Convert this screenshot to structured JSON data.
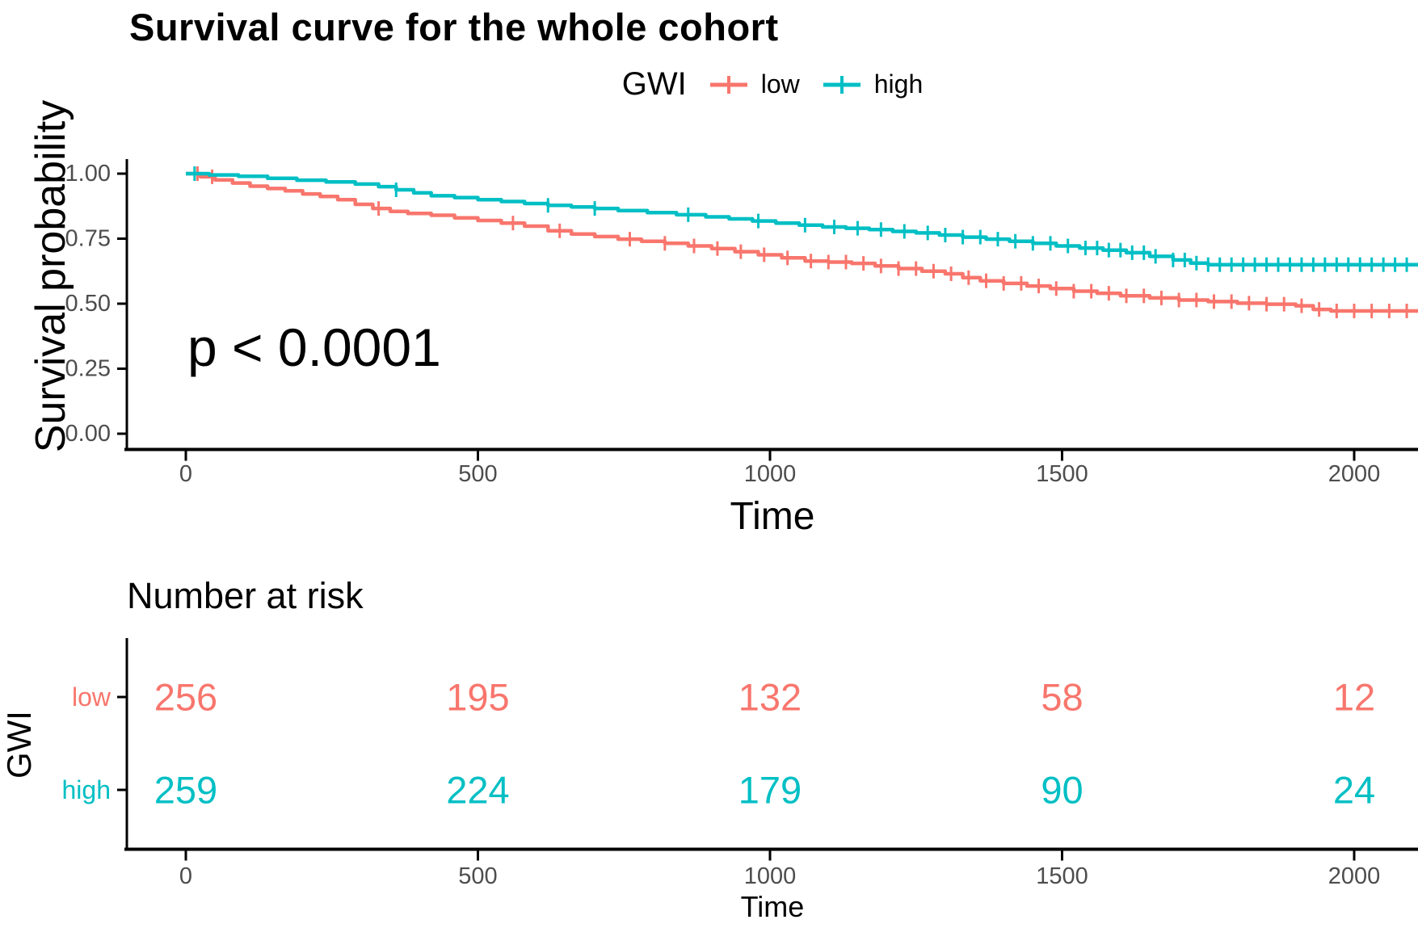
{
  "title": "Survival curve for the whole cohort",
  "legend": {
    "title": "GWI",
    "items": [
      {
        "label": "low",
        "color": "#F8766D"
      },
      {
        "label": "high",
        "color": "#00BFC4"
      }
    ]
  },
  "main_plot": {
    "ylabel": "Survival probability",
    "xlabel": "Time",
    "x_ticks": [
      "0",
      "500",
      "1000",
      "1500",
      "2000"
    ],
    "y_ticks": [
      "1.00",
      "0.75",
      "0.50",
      "0.25",
      "0.00"
    ]
  },
  "risk_table": {
    "title": "Number at risk",
    "ylabel": "GWI",
    "xlabel": "Time",
    "x_ticks": [
      "0",
      "500",
      "1000",
      "1500",
      "2000"
    ],
    "rows": [
      {
        "label": "low",
        "color": "#F8766D",
        "counts": [
          "256",
          "195",
          "132",
          "58",
          "12"
        ]
      },
      {
        "label": "high",
        "color": "#00BFC4",
        "counts": [
          "259",
          "224",
          "179",
          "90",
          "24"
        ]
      }
    ]
  },
  "colors": {
    "low": "#F8766D",
    "high": "#00BFC4",
    "axis_line": "#000000",
    "tick_text": "#4D4D4D"
  },
  "chart_data": {
    "type": "line",
    "subtype": "kaplan-meier-step",
    "title": "Survival curve for the whole cohort",
    "xlabel": "Time",
    "ylabel": "Survival probability",
    "xlim": [
      0,
      2110
    ],
    "ylim": [
      0,
      1
    ],
    "x_ticks": [
      0,
      500,
      1000,
      1500,
      2000
    ],
    "y_ticks": [
      1.0,
      0.75,
      0.5,
      0.25,
      0.0
    ],
    "legend_position": "top",
    "grid": false,
    "annotations": [
      {
        "text": "p < 0.0001"
      }
    ],
    "series": [
      {
        "name": "low",
        "color": "#F8766D",
        "points": [
          [
            0,
            1.0
          ],
          [
            25,
            0.988
          ],
          [
            50,
            0.976
          ],
          [
            80,
            0.964
          ],
          [
            110,
            0.952
          ],
          [
            140,
            0.943
          ],
          [
            170,
            0.934
          ],
          [
            200,
            0.922
          ],
          [
            230,
            0.912
          ],
          [
            260,
            0.9
          ],
          [
            290,
            0.882
          ],
          [
            320,
            0.866
          ],
          [
            350,
            0.855
          ],
          [
            380,
            0.847
          ],
          [
            420,
            0.84
          ],
          [
            460,
            0.83
          ],
          [
            500,
            0.82
          ],
          [
            540,
            0.81
          ],
          [
            580,
            0.798
          ],
          [
            620,
            0.78
          ],
          [
            660,
            0.768
          ],
          [
            700,
            0.758
          ],
          [
            740,
            0.748
          ],
          [
            780,
            0.74
          ],
          [
            820,
            0.732
          ],
          [
            860,
            0.722
          ],
          [
            900,
            0.712
          ],
          [
            940,
            0.7
          ],
          [
            980,
            0.688
          ],
          [
            1020,
            0.676
          ],
          [
            1060,
            0.664
          ],
          [
            1100,
            0.66
          ],
          [
            1140,
            0.655
          ],
          [
            1180,
            0.645
          ],
          [
            1220,
            0.635
          ],
          [
            1260,
            0.625
          ],
          [
            1300,
            0.615
          ],
          [
            1330,
            0.6
          ],
          [
            1360,
            0.588
          ],
          [
            1400,
            0.578
          ],
          [
            1440,
            0.568
          ],
          [
            1480,
            0.558
          ],
          [
            1520,
            0.548
          ],
          [
            1560,
            0.54
          ],
          [
            1600,
            0.53
          ],
          [
            1650,
            0.522
          ],
          [
            1700,
            0.514
          ],
          [
            1750,
            0.508
          ],
          [
            1800,
            0.502
          ],
          [
            1850,
            0.498
          ],
          [
            1900,
            0.492
          ],
          [
            1930,
            0.478
          ],
          [
            1960,
            0.472
          ],
          [
            2110,
            0.47
          ]
        ],
        "censor_times": [
          20,
          45,
          330,
          560,
          640,
          760,
          820,
          870,
          910,
          950,
          990,
          1030,
          1070,
          1100,
          1130,
          1160,
          1190,
          1220,
          1250,
          1280,
          1310,
          1340,
          1370,
          1400,
          1430,
          1460,
          1490,
          1520,
          1550,
          1580,
          1610,
          1640,
          1670,
          1700,
          1730,
          1760,
          1790,
          1820,
          1850,
          1880,
          1910,
          1940,
          1970,
          2000,
          2030,
          2060,
          2090
        ]
      },
      {
        "name": "high",
        "color": "#00BFC4",
        "points": [
          [
            0,
            1.0
          ],
          [
            40,
            0.995
          ],
          [
            90,
            0.99
          ],
          [
            140,
            0.982
          ],
          [
            190,
            0.975
          ],
          [
            240,
            0.968
          ],
          [
            290,
            0.96
          ],
          [
            330,
            0.95
          ],
          [
            360,
            0.938
          ],
          [
            390,
            0.926
          ],
          [
            420,
            0.915
          ],
          [
            460,
            0.908
          ],
          [
            500,
            0.9
          ],
          [
            540,
            0.893
          ],
          [
            580,
            0.885
          ],
          [
            620,
            0.878
          ],
          [
            660,
            0.872
          ],
          [
            700,
            0.866
          ],
          [
            740,
            0.858
          ],
          [
            790,
            0.85
          ],
          [
            840,
            0.842
          ],
          [
            890,
            0.834
          ],
          [
            930,
            0.826
          ],
          [
            970,
            0.818
          ],
          [
            1010,
            0.81
          ],
          [
            1050,
            0.802
          ],
          [
            1090,
            0.795
          ],
          [
            1130,
            0.79
          ],
          [
            1170,
            0.785
          ],
          [
            1210,
            0.778
          ],
          [
            1250,
            0.772
          ],
          [
            1290,
            0.764
          ],
          [
            1330,
            0.756
          ],
          [
            1370,
            0.748
          ],
          [
            1410,
            0.74
          ],
          [
            1450,
            0.732
          ],
          [
            1490,
            0.722
          ],
          [
            1530,
            0.714
          ],
          [
            1570,
            0.706
          ],
          [
            1610,
            0.696
          ],
          [
            1650,
            0.682
          ],
          [
            1690,
            0.668
          ],
          [
            1720,
            0.656
          ],
          [
            1750,
            0.65
          ],
          [
            2110,
            0.65
          ]
        ],
        "censor_times": [
          15,
          360,
          620,
          700,
          860,
          980,
          1060,
          1110,
          1150,
          1190,
          1230,
          1270,
          1300,
          1330,
          1360,
          1390,
          1420,
          1450,
          1480,
          1510,
          1540,
          1560,
          1580,
          1600,
          1620,
          1640,
          1660,
          1690,
          1710,
          1730,
          1750,
          1770,
          1790,
          1810,
          1830,
          1850,
          1870,
          1890,
          1910,
          1930,
          1950,
          1970,
          1990,
          2010,
          2030,
          2050,
          2070,
          2090
        ]
      }
    ]
  }
}
